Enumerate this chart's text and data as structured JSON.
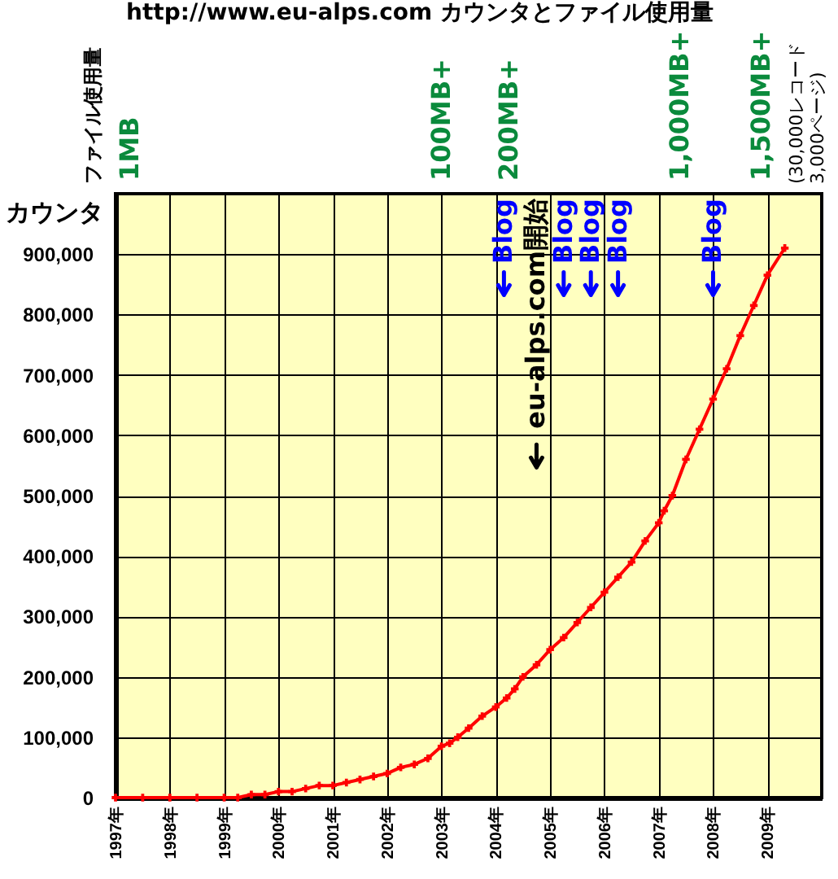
{
  "chart_data": {
    "type": "line",
    "title": "http://www.eu-alps.com カウンタとファイル使用量",
    "ylabel": "カウンタ",
    "x": [
      1997.0,
      1997.5,
      1998.0,
      1998.5,
      1999.0,
      1999.25,
      1999.5,
      1999.75,
      2000.0,
      2000.25,
      2000.5,
      2000.75,
      2001.0,
      2001.25,
      2001.5,
      2001.75,
      2002.0,
      2002.25,
      2002.5,
      2002.75,
      2003.0,
      2003.15,
      2003.3,
      2003.5,
      2003.75,
      2004.0,
      2004.2,
      2004.35,
      2004.5,
      2004.75,
      2005.0,
      2005.25,
      2005.5,
      2005.75,
      2006.0,
      2006.25,
      2006.5,
      2006.75,
      2007.0,
      2007.1,
      2007.25,
      2007.5,
      2007.75,
      2008.0,
      2008.25,
      2008.5,
      2008.75,
      2009.0,
      2009.32
    ],
    "series": [
      {
        "color": "#ff0000",
        "values": [
          0,
          0,
          0,
          0,
          0,
          0,
          5000,
          5000,
          10000,
          10000,
          15000,
          20000,
          20000,
          25000,
          30000,
          35000,
          40000,
          50000,
          55000,
          65000,
          85000,
          90000,
          100000,
          115000,
          135000,
          150000,
          165000,
          180000,
          200000,
          220000,
          245000,
          265000,
          290000,
          315000,
          340000,
          365000,
          390000,
          425000,
          455000,
          475000,
          500000,
          560000,
          610000,
          660000,
          710000,
          765000,
          815000,
          865000,
          910000
        ]
      }
    ],
    "xlim": [
      1997,
      2010
    ],
    "xticks": [
      {
        "value": 1997,
        "label": "1997年"
      },
      {
        "value": 1998,
        "label": "1998年"
      },
      {
        "value": 1999,
        "label": "1999年"
      },
      {
        "value": 2000,
        "label": "2000年"
      },
      {
        "value": 2001,
        "label": "2001年"
      },
      {
        "value": 2002,
        "label": "2002年"
      },
      {
        "value": 2003,
        "label": "2003年"
      },
      {
        "value": 2004,
        "label": "2004年"
      },
      {
        "value": 2005,
        "label": "2005年"
      },
      {
        "value": 2006,
        "label": "2006年"
      },
      {
        "value": 2007,
        "label": "2007年"
      },
      {
        "value": 2008,
        "label": "2008年"
      },
      {
        "value": 2009,
        "label": "2009年"
      }
    ],
    "ylim": [
      0,
      1000000
    ],
    "yticks": [
      0,
      {
        "value": 100000,
        "label": "100,000"
      },
      {
        "value": 200000,
        "label": "200,000"
      },
      {
        "value": 300000,
        "label": "300,000"
      },
      {
        "value": 400000,
        "label": "400,000"
      },
      {
        "value": 500000,
        "label": "500,000"
      },
      {
        "value": 600000,
        "label": "600,000"
      },
      {
        "value": 700000,
        "label": "700,000"
      },
      {
        "value": 800000,
        "label": "800,000"
      },
      {
        "value": 900000,
        "label": "900,000"
      }
    ],
    "ref_lines": [
      {
        "axis": "x",
        "value": 2004.15,
        "label": "Blog",
        "color": "#0000ff"
      },
      {
        "axis": "x",
        "value": 2005.25,
        "label": "Blog",
        "color": "#0000ff"
      },
      {
        "axis": "x",
        "value": 2005.75,
        "label": "Blog",
        "color": "#0000ff"
      },
      {
        "axis": "x",
        "value": 2006.25,
        "label": "Blog",
        "color": "#0000ff"
      },
      {
        "axis": "x",
        "value": 2008.0,
        "label": "Blog",
        "color": "#0000ff"
      },
      {
        "axis": "x",
        "value": 2004.75,
        "label": "eu-alps.com開始",
        "color": "#000000"
      }
    ],
    "annotations": [
      "ファイル使用量",
      "1MB",
      "100MB+",
      "200MB+",
      "1,000MB+",
      "1,500MB+",
      "(30,000レコード 3,000ページ)"
    ],
    "grid": true,
    "marker": "cross",
    "line_style": "solid"
  }
}
